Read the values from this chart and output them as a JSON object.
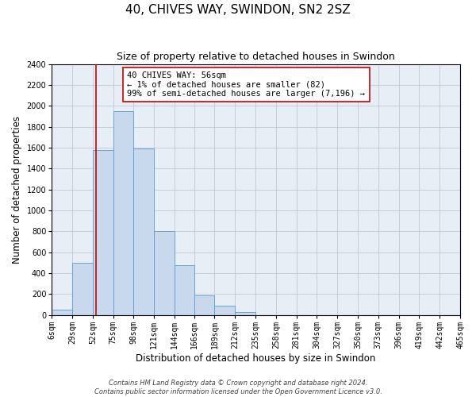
{
  "title": "40, CHIVES WAY, SWINDON, SN2 2SZ",
  "subtitle": "Size of property relative to detached houses in Swindon",
  "xlabel": "Distribution of detached houses by size in Swindon",
  "ylabel": "Number of detached properties",
  "bar_edges": [
    6,
    29,
    52,
    75,
    98,
    121,
    144,
    166,
    189,
    212,
    235,
    258,
    281,
    304,
    327,
    350,
    373,
    396,
    419,
    442,
    465
  ],
  "bar_heights": [
    50,
    500,
    1575,
    1950,
    1590,
    800,
    475,
    185,
    90,
    30,
    0,
    0,
    0,
    0,
    0,
    0,
    0,
    0,
    0,
    0
  ],
  "bar_color": "#c9d9ed",
  "bar_edge_color": "#5b9bd5",
  "vline_x": 56,
  "vline_color": "#cc0000",
  "annotation_text_line1": "40 CHIVES WAY: 56sqm",
  "annotation_text_line2": "← 1% of detached houses are smaller (82)",
  "annotation_text_line3": "99% of semi-detached houses are larger (7,196) →",
  "annotation_box_color": "#ffffff",
  "annotation_border_color": "#cc0000",
  "ylim": [
    0,
    2400
  ],
  "yticks": [
    0,
    200,
    400,
    600,
    800,
    1000,
    1200,
    1400,
    1600,
    1800,
    2000,
    2200,
    2400
  ],
  "xtick_labels": [
    "6sqm",
    "29sqm",
    "52sqm",
    "75sqm",
    "98sqm",
    "121sqm",
    "144sqm",
    "166sqm",
    "189sqm",
    "212sqm",
    "235sqm",
    "258sqm",
    "281sqm",
    "304sqm",
    "327sqm",
    "350sqm",
    "373sqm",
    "396sqm",
    "419sqm",
    "442sqm",
    "465sqm"
  ],
  "footnote1": "Contains HM Land Registry data © Crown copyright and database right 2024.",
  "footnote2": "Contains public sector information licensed under the Open Government Licence v3.0.",
  "bg_color": "#ffffff",
  "plot_bg_color": "#e8eef5",
  "grid_color": "#c0c8d8",
  "title_fontsize": 11,
  "subtitle_fontsize": 9,
  "axis_label_fontsize": 8.5,
  "tick_fontsize": 7,
  "annotation_fontsize": 7.5,
  "footnote_fontsize": 6
}
